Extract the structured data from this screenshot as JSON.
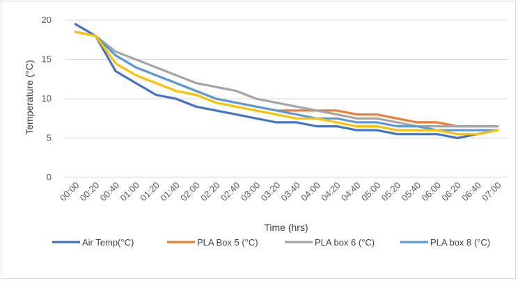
{
  "chart_data": {
    "type": "line",
    "xlabel": "Time (hrs)",
    "ylabel": "Temperature (°C)",
    "ylim": [
      0,
      20
    ],
    "yticks": [
      "0",
      "5",
      "10",
      "15",
      "20"
    ],
    "categories": [
      "00:00",
      "00:20",
      "00:40",
      "01:00",
      "01:20",
      "01:40",
      "02:00",
      "02:20",
      "02:40",
      "03:00",
      "03:20",
      "03:40",
      "04:00",
      "04:20",
      "04:40",
      "05:00",
      "05:20",
      "05:40",
      "06:00",
      "06:20",
      "06:40",
      "07:00"
    ],
    "grid": "horizontal",
    "legend_position": "bottom",
    "series": [
      {
        "name": "Air Temp(°C)",
        "color": "#4472C4",
        "values": [
          19.5,
          18.0,
          13.5,
          12.0,
          10.5,
          10.0,
          9.0,
          8.5,
          8.0,
          7.5,
          7.0,
          7.0,
          6.5,
          6.5,
          6.0,
          6.0,
          5.5,
          5.5,
          5.5,
          5.0,
          5.5,
          6.0
        ]
      },
      {
        "name": "PLA Box 5 (°C)",
        "color": "#ED7D31",
        "values": [
          18.5,
          18.0,
          15.5,
          14.0,
          13.0,
          12.0,
          11.0,
          10.0,
          9.5,
          9.0,
          8.5,
          8.5,
          8.5,
          8.5,
          8.0,
          8.0,
          7.5,
          7.0,
          7.0,
          6.5,
          6.5,
          6.5
        ]
      },
      {
        "name": "PLA box 6 (°C)",
        "color": "#A5A5A5",
        "values": [
          18.5,
          18.0,
          16.0,
          15.0,
          14.0,
          13.0,
          12.0,
          11.5,
          11.0,
          10.0,
          9.5,
          9.0,
          8.5,
          8.0,
          7.5,
          7.5,
          7.0,
          6.5,
          6.5,
          6.5,
          6.5,
          6.5
        ]
      },
      {
        "name": "PLA box 8 (°C)",
        "color": "#5B9BD5",
        "values": [
          18.5,
          18.0,
          15.5,
          14.0,
          13.0,
          12.0,
          11.0,
          10.0,
          9.5,
          9.0,
          8.5,
          8.0,
          7.5,
          7.5,
          7.0,
          7.0,
          6.5,
          6.5,
          6.0,
          6.0,
          6.0,
          6.0
        ]
      },
      {
        "name": "",
        "color": "#FFC000",
        "values": [
          18.5,
          18.0,
          14.5,
          13.0,
          12.0,
          11.0,
          10.5,
          9.5,
          9.0,
          8.5,
          8.0,
          7.5,
          7.5,
          7.0,
          6.5,
          6.5,
          6.0,
          6.0,
          6.0,
          5.5,
          5.5,
          6.0
        ]
      }
    ]
  }
}
